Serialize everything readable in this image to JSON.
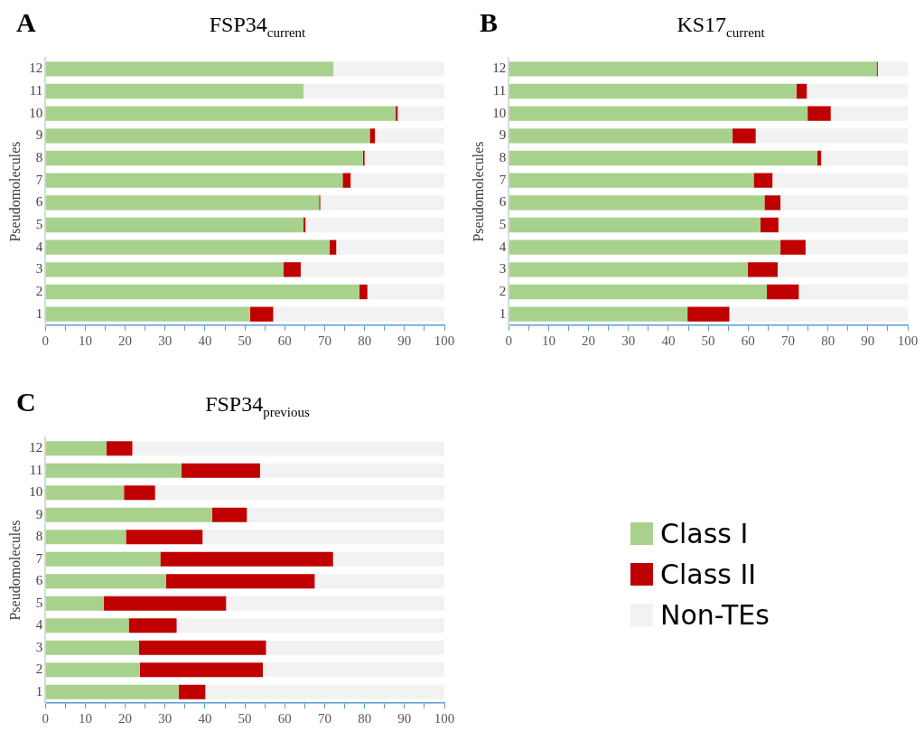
{
  "chart_data": [
    {
      "type": "bar",
      "title": "FSP34$_{current}$",
      "annotations": [
        "A"
      ],
      "ylabel": "Pseudomolecules",
      "orientation": "horizontal",
      "stacked": true,
      "grid": false,
      "legend": "bottom right",
      "categories": [
        "12",
        "11",
        "10",
        "9",
        "8",
        "7",
        "6",
        "5",
        "4",
        "3",
        "2",
        "1"
      ],
      "series": [
        {
          "name": "Class I",
          "color": "#a9d18e",
          "values": [
            72.2,
            64.7,
            87.8,
            81.3,
            79.6,
            74.5,
            68.6,
            64.7,
            71.2,
            59.7,
            78.7,
            51.3
          ]
        },
        {
          "name": "Class II",
          "color": "#c00000",
          "values": [
            0,
            0,
            0.5,
            1.3,
            0.4,
            2.0,
            0.3,
            0.5,
            1.7,
            4.3,
            2.0,
            5.8
          ]
        },
        {
          "name": "Non-TEs",
          "color": "#f2f2f2",
          "values": [
            27.8,
            35.3,
            11.7,
            17.4,
            20.0,
            23.5,
            31.1,
            34.8,
            27.1,
            36.0,
            19.3,
            42.9
          ]
        }
      ],
      "xlim": [
        0,
        100
      ],
      "xticks": [
        0,
        {
          "value": 5,
          "label": null
        },
        10,
        {
          "value": 15,
          "label": null
        },
        20,
        {
          "value": 25,
          "label": null
        },
        30,
        {
          "value": 35,
          "label": null
        },
        40,
        {
          "value": 45,
          "label": null
        },
        50,
        {
          "value": 55,
          "label": null
        },
        60,
        {
          "value": 65,
          "label": null
        },
        70,
        {
          "value": 75,
          "label": null
        },
        80,
        {
          "value": 85,
          "label": null
        },
        90,
        {
          "value": 95,
          "label": null
        },
        100
      ]
    },
    {
      "type": "bar",
      "title": "KS17$_{current}$",
      "annotations": [
        "B"
      ],
      "ylabel": "Pseudomolecules",
      "orientation": "horizontal",
      "stacked": true,
      "grid": false,
      "legend": "bottom",
      "categories": [
        "12",
        "11",
        "10",
        "9",
        "8",
        "7",
        "6",
        "5",
        "4",
        "3",
        "2",
        "1"
      ],
      "series": [
        {
          "name": "Class I",
          "color": "#a9d18e",
          "values": [
            92.2,
            72.1,
            74.9,
            56.1,
            77.3,
            61.4,
            64.1,
            63.1,
            68.1,
            59.9,
            64.7,
            44.8
          ]
        },
        {
          "name": "Class II",
          "color": "#c00000",
          "values": [
            0.3,
            2.6,
            5.8,
            5.8,
            1.0,
            4.7,
            4.0,
            4.5,
            6.3,
            7.5,
            8.0,
            10.5
          ]
        },
        {
          "name": "Non-TEs",
          "color": "#f2f2f2",
          "values": [
            7.5,
            25.3,
            19.3,
            38.1,
            21.7,
            33.9,
            31.9,
            32.4,
            25.6,
            32.6,
            27.3,
            44.7
          ]
        }
      ],
      "xlim": [
        0,
        100
      ],
      "xticks": [
        0,
        {
          "value": 5,
          "label": null
        },
        10,
        {
          "value": 15,
          "label": null
        },
        20,
        {
          "value": 25,
          "label": null
        },
        30,
        {
          "value": 35,
          "label": null
        },
        40,
        {
          "value": 45,
          "label": null
        },
        50,
        {
          "value": 55,
          "label": null
        },
        60,
        {
          "value": 65,
          "label": null
        },
        70,
        {
          "value": 75,
          "label": null
        },
        80,
        {
          "value": 85,
          "label": null
        },
        90,
        {
          "value": 95,
          "label": null
        },
        100
      ]
    },
    {
      "type": "bar",
      "title": "FSP34$_{previous}$",
      "annotations": [
        "C"
      ],
      "ylabel": "Pseudomolecules",
      "orientation": "horizontal",
      "stacked": true,
      "grid": false,
      "legend": "right",
      "categories": [
        "12",
        "11",
        "10",
        "9",
        "8",
        "7",
        "6",
        "5",
        "4",
        "3",
        "2",
        "1"
      ],
      "series": [
        {
          "name": "Class I",
          "color": "#a9d18e",
          "values": [
            15.3,
            34.1,
            19.7,
            41.8,
            20.2,
            28.8,
            30.2,
            14.6,
            20.9,
            23.5,
            23.7,
            33.4
          ]
        },
        {
          "name": "Class II",
          "color": "#c00000",
          "values": [
            6.5,
            19.7,
            7.8,
            8.7,
            19.2,
            43.3,
            37.3,
            30.7,
            12.0,
            31.8,
            30.8,
            6.7
          ]
        },
        {
          "name": "Non-TEs",
          "color": "#f2f2f2",
          "values": [
            78.2,
            46.2,
            72.5,
            49.5,
            60.6,
            27.9,
            32.5,
            54.7,
            67.1,
            44.7,
            45.5,
            59.9
          ]
        }
      ],
      "xlim": [
        0,
        100
      ],
      "xticks": [
        0,
        {
          "value": 5,
          "label": null
        },
        10,
        {
          "value": 15,
          "label": null
        },
        20,
        {
          "value": 25,
          "label": null
        },
        30,
        {
          "value": 35,
          "label": null
        },
        40,
        {
          "value": 45,
          "label": null
        },
        50,
        {
          "value": 55,
          "label": null
        },
        60,
        {
          "value": 65,
          "label": null
        },
        70,
        {
          "value": 75,
          "label": null
        },
        80,
        {
          "value": 85,
          "label": null
        },
        90,
        {
          "value": 95,
          "label": null
        },
        100
      ]
    }
  ]
}
